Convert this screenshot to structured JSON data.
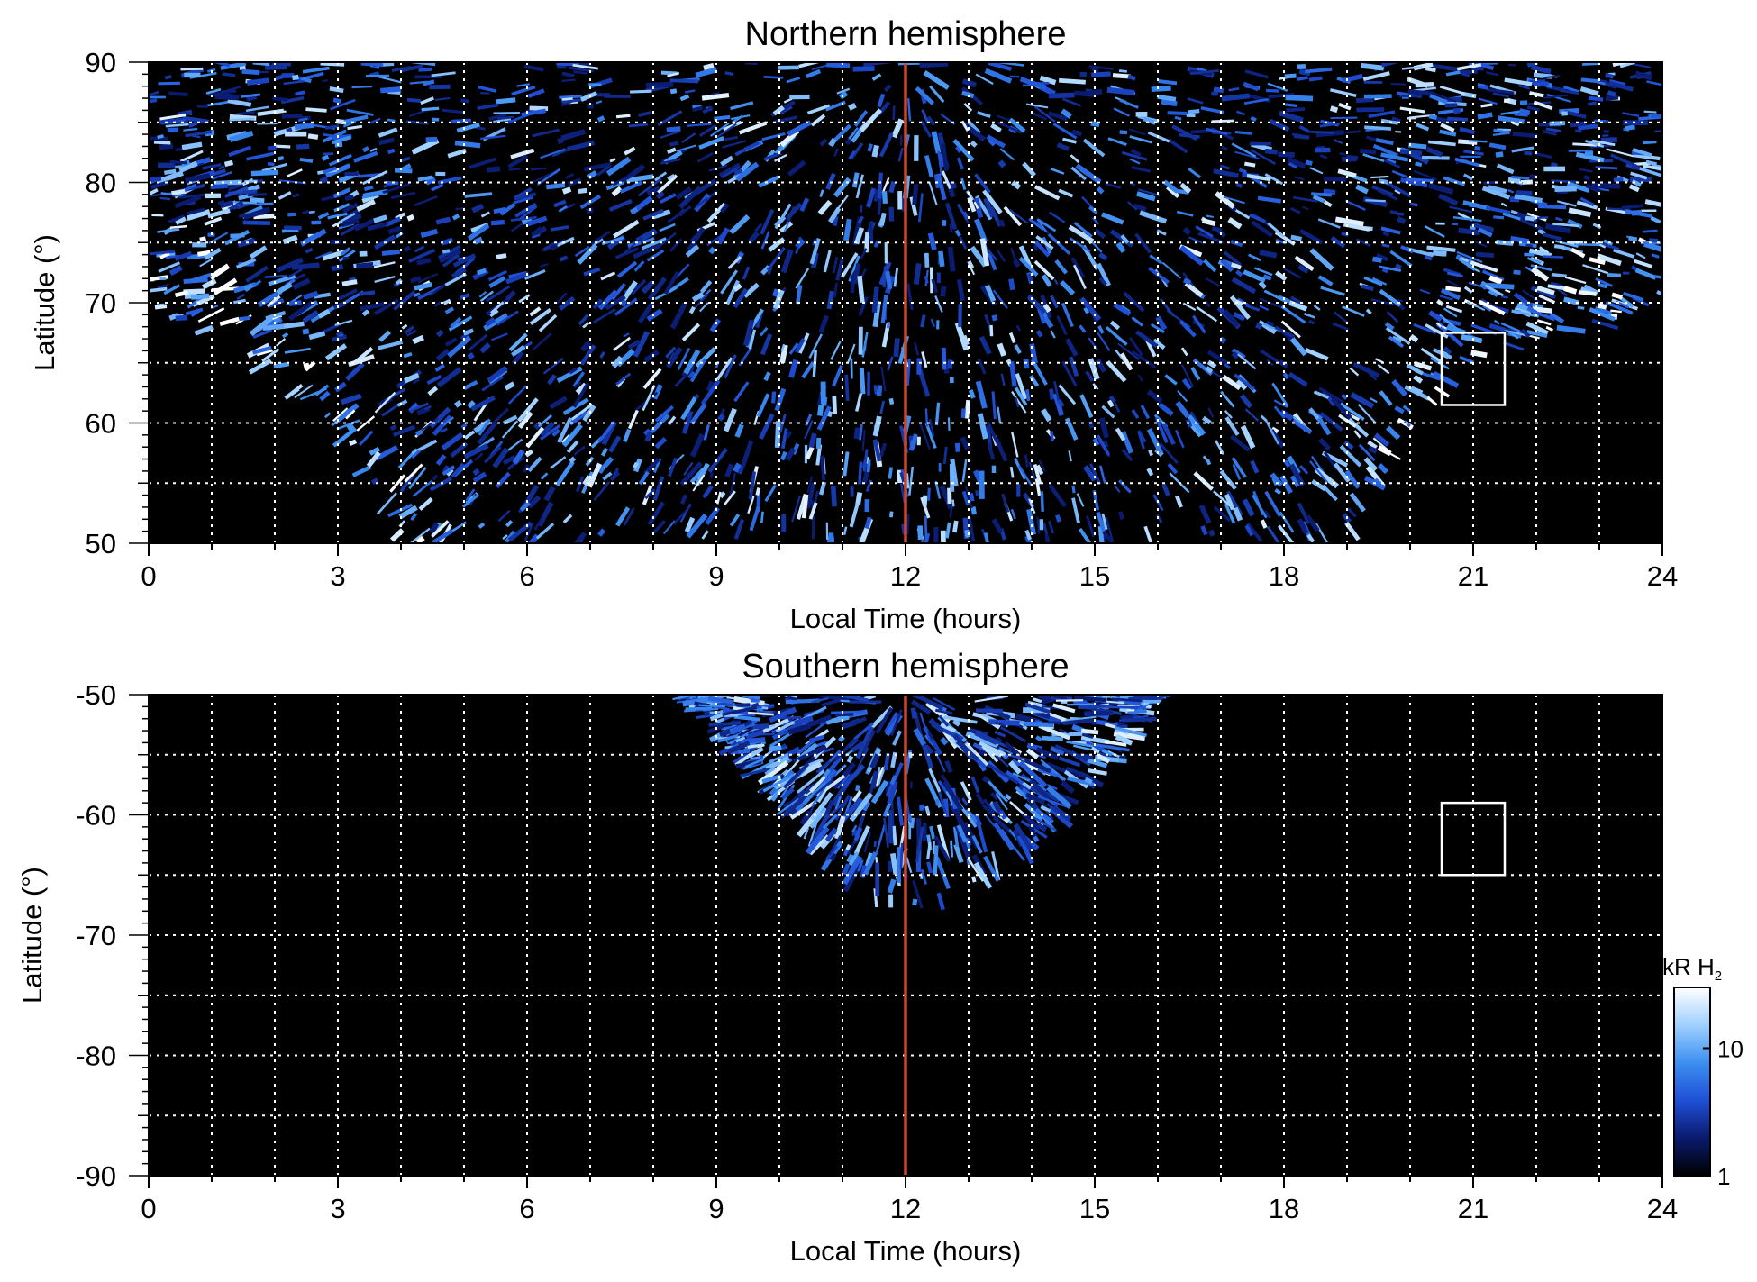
{
  "chart_data": [
    {
      "type": "heatmap",
      "title": "Northern hemisphere",
      "xlabel": "Local Time (hours)",
      "ylabel": "Latitude (°)",
      "xlim": [
        0,
        24
      ],
      "ylim": [
        50,
        90
      ],
      "x_ticks": [
        "0",
        "3",
        "6",
        "9",
        "12",
        "15",
        "18",
        "21",
        "24"
      ],
      "y_ticks": [
        "50",
        "60",
        "70",
        "80",
        "90"
      ],
      "grid": true,
      "reference_line": {
        "x": 12,
        "color": "#d0442a"
      },
      "box": {
        "x0": 20.5,
        "x1": 21.5,
        "y0": 61.5,
        "y1": 67.5
      },
      "coverage_region": {
        "description_low_lat_edge": [
          [
            0,
            70
          ],
          [
            1,
            67
          ],
          [
            2,
            63
          ],
          [
            3,
            59
          ],
          [
            4,
            50
          ],
          [
            19,
            50
          ],
          [
            20,
            60
          ],
          [
            21,
            65
          ],
          [
            22,
            67
          ],
          [
            23,
            68
          ],
          [
            24,
            70
          ]
        ]
      }
    },
    {
      "type": "heatmap",
      "title": "Southern hemisphere",
      "xlabel": "Local Time (hours)",
      "ylabel": "Latitude (°)",
      "xlim": [
        0,
        24
      ],
      "ylim": [
        -90,
        -50
      ],
      "x_ticks": [
        "0",
        "3",
        "6",
        "9",
        "12",
        "15",
        "18",
        "21",
        "24"
      ],
      "y_ticks": [
        "-90",
        "-80",
        "-70",
        "-60",
        "-50"
      ],
      "grid": true,
      "reference_line": {
        "x": 12,
        "color": "#d0442a"
      },
      "box": {
        "x0": 20.5,
        "x1": 21.5,
        "y0": -65,
        "y1": -59
      },
      "coverage_region": {
        "description_high_lat_edge": [
          [
            8.5,
            -50
          ],
          [
            9.5,
            -56
          ],
          [
            10.5,
            -62
          ],
          [
            11.5,
            -67
          ],
          [
            12,
            -67.5
          ],
          [
            12.5,
            -67.5
          ],
          [
            13.5,
            -65
          ],
          [
            14.5,
            -60
          ],
          [
            15.5,
            -54
          ],
          [
            16,
            -50
          ]
        ]
      }
    }
  ],
  "colorbar": {
    "label": "kR H",
    "label_sub": "2",
    "scale": "log",
    "range": [
      1,
      30
    ],
    "ticks": [
      {
        "value": 1,
        "label": "1"
      },
      {
        "value": 10,
        "label": "10"
      }
    ],
    "colors": [
      "#000000",
      "#0a1a6e",
      "#1f4fd6",
      "#3d8ff0",
      "#9fd0ff",
      "#ffffff"
    ]
  }
}
